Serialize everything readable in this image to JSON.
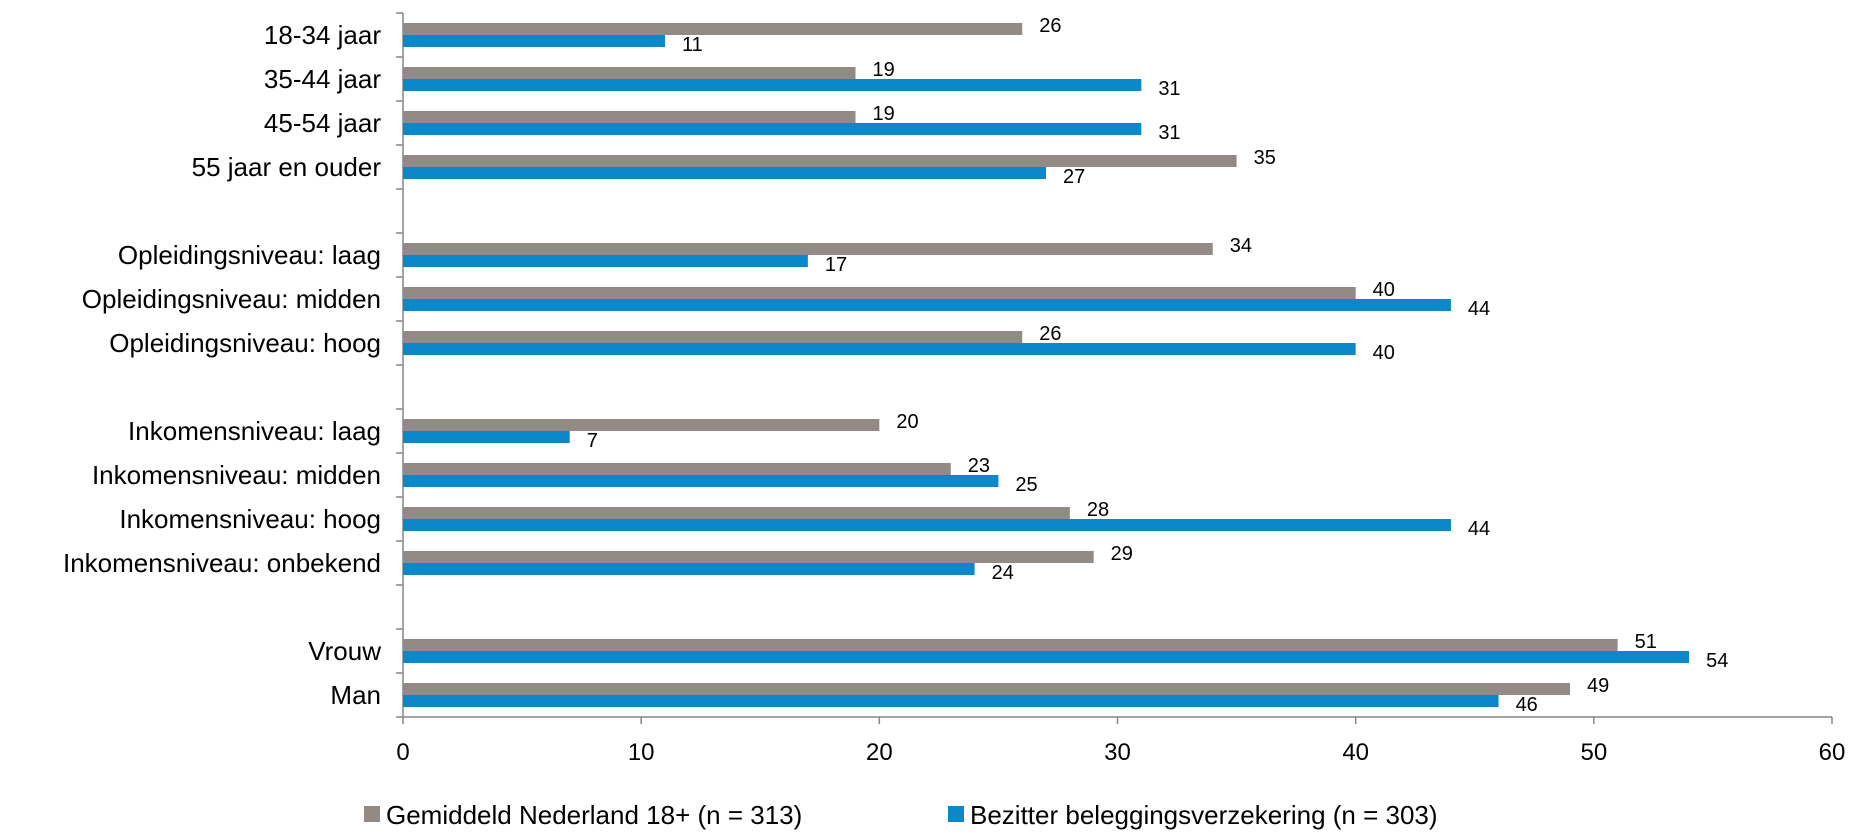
{
  "chart_data": {
    "type": "bar",
    "orientation": "horizontal",
    "categories": [
      "18-34 jaar",
      "35-44 jaar",
      "45-54 jaar",
      "55 jaar en ouder",
      "",
      "Opleidingsniveau: laag",
      "Opleidingsniveau: midden",
      "Opleidingsniveau: hoog",
      "",
      "Inkomensniveau: laag",
      "Inkomensniveau: midden",
      "Inkomensniveau: hoog",
      "Inkomensniveau: onbekend",
      "",
      "Vrouw",
      "Man"
    ],
    "series": [
      {
        "name": "Gemiddeld Nederland 18+ (n = 313)",
        "color": "#948a85",
        "values": [
          26,
          19,
          19,
          35,
          null,
          34,
          40,
          26,
          null,
          20,
          23,
          28,
          29,
          null,
          51,
          49
        ]
      },
      {
        "name": "Bezitter beleggingsverzekering (n = 303)",
        "color": "#0b88c9",
        "values": [
          11,
          31,
          31,
          27,
          null,
          17,
          44,
          40,
          null,
          7,
          25,
          44,
          24,
          null,
          54,
          46
        ]
      }
    ],
    "xlim": [
      0,
      60
    ],
    "xticks": [
      "0",
      "10",
      "20",
      "30",
      "40",
      "50",
      "60"
    ],
    "grid": false,
    "legend_position": "bottom",
    "title": "",
    "xlabel": "",
    "ylabel": ""
  }
}
